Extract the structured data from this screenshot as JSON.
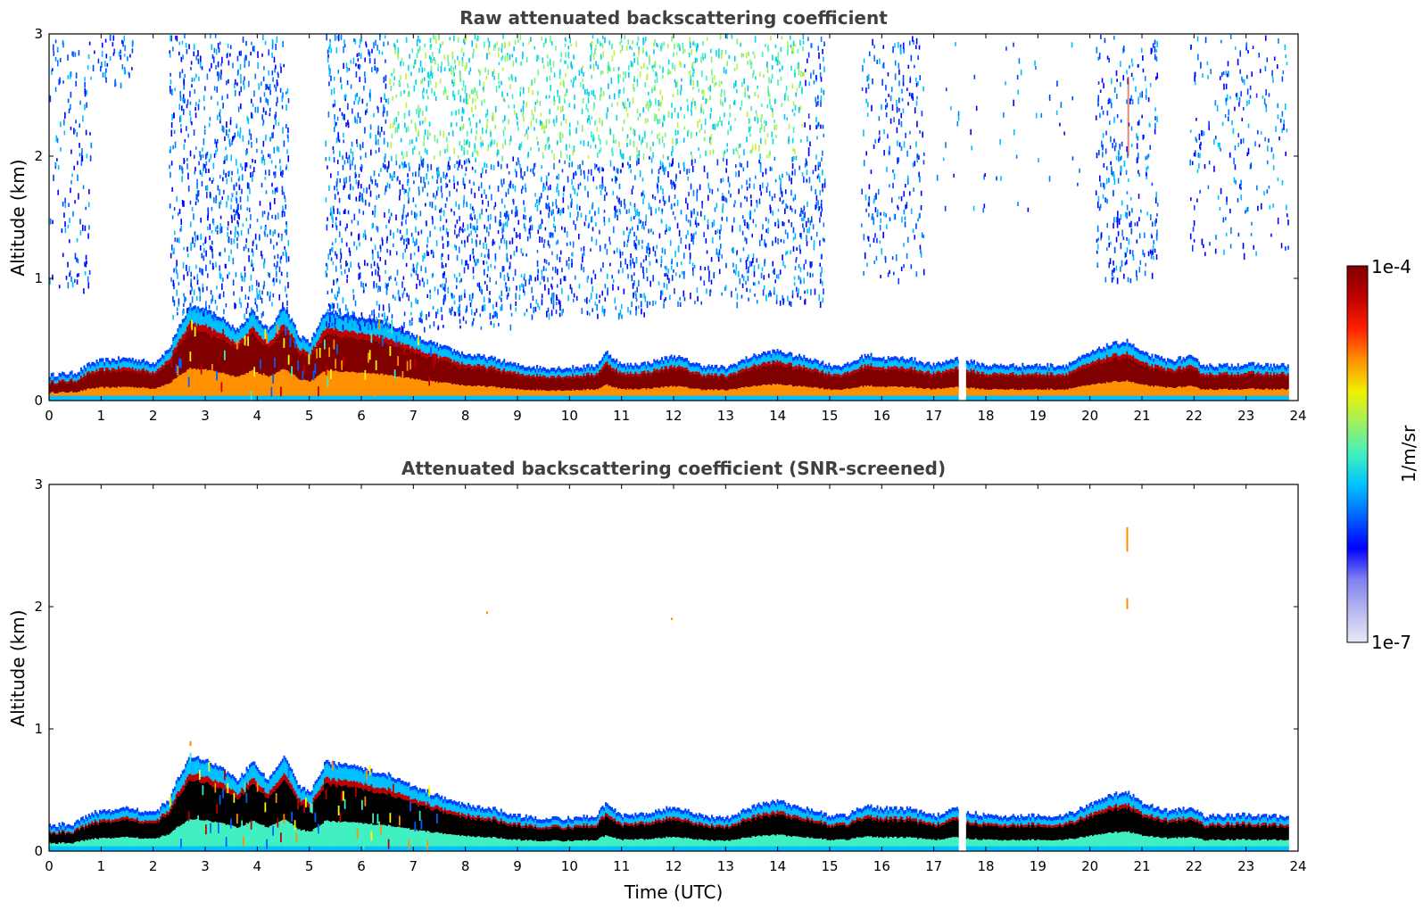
{
  "chart_data": [
    {
      "type": "heatmap",
      "title": "Raw attenuated backscattering coefficient",
      "xlabel": "",
      "ylabel": "Altitude (km)",
      "xlim": [
        0,
        24
      ],
      "ylim": [
        0,
        3
      ],
      "xticks": [
        0,
        1,
        2,
        3,
        4,
        5,
        6,
        7,
        8,
        9,
        10,
        11,
        12,
        13,
        14,
        15,
        16,
        17,
        18,
        19,
        20,
        21,
        22,
        23,
        24
      ],
      "yticks": [
        0,
        1,
        2,
        3
      ],
      "screened": false,
      "boundary_layer_top_km": {
        "x": [
          0,
          0.5,
          0.8,
          1,
          1.5,
          2,
          2.3,
          2.5,
          2.7,
          3,
          3.3,
          3.6,
          3.9,
          4.2,
          4.5,
          4.8,
          5,
          5.3,
          5.6,
          6,
          6.5,
          7,
          7.5,
          8,
          8.5,
          9,
          9.5,
          10,
          10.5,
          10.7,
          11,
          11.5,
          12,
          12.5,
          13,
          13.4,
          13.7,
          14,
          14.3,
          14.6,
          15,
          15.3,
          15.7,
          16,
          16.5,
          17,
          17.4,
          17.6,
          18,
          18.5,
          19,
          19.5,
          20,
          20.3,
          20.7,
          21,
          21.5,
          21.9,
          22.2,
          22.6,
          23,
          23.5,
          23.8
        ],
        "y": [
          0.18,
          0.2,
          0.28,
          0.3,
          0.32,
          0.28,
          0.4,
          0.6,
          0.75,
          0.72,
          0.65,
          0.55,
          0.7,
          0.55,
          0.75,
          0.5,
          0.45,
          0.7,
          0.68,
          0.65,
          0.6,
          0.5,
          0.42,
          0.35,
          0.32,
          0.26,
          0.24,
          0.24,
          0.26,
          0.37,
          0.26,
          0.28,
          0.34,
          0.26,
          0.24,
          0.32,
          0.36,
          0.38,
          0.34,
          0.32,
          0.26,
          0.26,
          0.35,
          0.32,
          0.32,
          0.26,
          0.32,
          0.3,
          0.26,
          0.26,
          0.26,
          0.26,
          0.36,
          0.42,
          0.46,
          0.36,
          0.3,
          0.33,
          0.26,
          0.26,
          0.27,
          0.26,
          0.26
        ]
      }
    },
    {
      "type": "heatmap",
      "title": "Attenuated backscattering coefficient (SNR-screened)",
      "xlabel": "Time (UTC)",
      "ylabel": "Altitude (km)",
      "xlim": [
        0,
        24
      ],
      "ylim": [
        0,
        3
      ],
      "xticks": [
        0,
        1,
        2,
        3,
        4,
        5,
        6,
        7,
        8,
        9,
        10,
        11,
        12,
        13,
        14,
        15,
        16,
        17,
        18,
        19,
        20,
        21,
        22,
        23,
        24
      ],
      "yticks": [
        0,
        1,
        2,
        3
      ],
      "screened": true,
      "isolated_features": [
        {
          "x": 20.7,
          "y0": 2.45,
          "y1": 2.65
        },
        {
          "x": 20.7,
          "y0": 1.98,
          "y1": 2.07
        },
        {
          "x": 8.4,
          "y0": 1.94,
          "y1": 1.96
        },
        {
          "x": 11.95,
          "y0": 1.89,
          "y1": 1.91
        },
        {
          "x": 2.7,
          "y0": 0.86,
          "y1": 0.9
        }
      ]
    }
  ],
  "colorbar": {
    "label": "1/m/sr",
    "max_label": "1e-4",
    "min_label": "1e-7",
    "scale": "log",
    "colors": [
      "#e8e8f8",
      "#b8b8f0",
      "#8080f0",
      "#0000ff",
      "#0060ff",
      "#00c0ff",
      "#40f0c0",
      "#a0f060",
      "#f0f000",
      "#ff9000",
      "#ff2000",
      "#c00000",
      "#800000"
    ]
  }
}
